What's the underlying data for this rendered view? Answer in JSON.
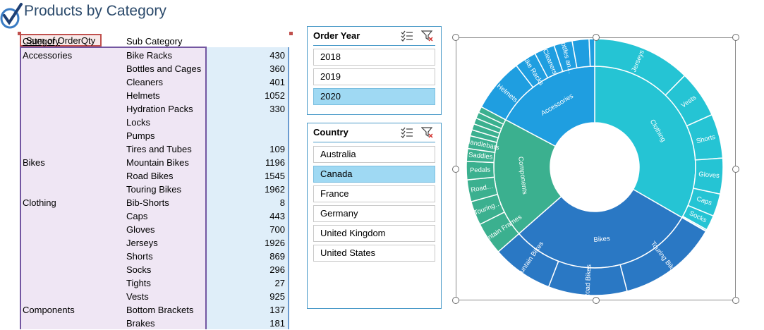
{
  "title": "Products by Category",
  "pivot": {
    "headers": {
      "category": "Category",
      "sub_category": "Sub Category",
      "sum": "Sum of OrderQty"
    },
    "rows": [
      {
        "category": "Accessories",
        "sub": "Bike Racks",
        "value": "430"
      },
      {
        "category": "",
        "sub": "Bottles and Cages",
        "value": "360"
      },
      {
        "category": "",
        "sub": "Cleaners",
        "value": "401"
      },
      {
        "category": "",
        "sub": "Helmets",
        "value": "1052"
      },
      {
        "category": "",
        "sub": "Hydration Packs",
        "value": "330"
      },
      {
        "category": "",
        "sub": "Locks",
        "value": ""
      },
      {
        "category": "",
        "sub": "Pumps",
        "value": ""
      },
      {
        "category": "",
        "sub": "Tires and Tubes",
        "value": "109"
      },
      {
        "category": "Bikes",
        "sub": "Mountain Bikes",
        "value": "1196"
      },
      {
        "category": "",
        "sub": "Road Bikes",
        "value": "1545"
      },
      {
        "category": "",
        "sub": "Touring Bikes",
        "value": "1962"
      },
      {
        "category": "Clothing",
        "sub": "Bib-Shorts",
        "value": "8"
      },
      {
        "category": "",
        "sub": "Caps",
        "value": "443"
      },
      {
        "category": "",
        "sub": "Gloves",
        "value": "700"
      },
      {
        "category": "",
        "sub": "Jerseys",
        "value": "1926"
      },
      {
        "category": "",
        "sub": "Shorts",
        "value": "869"
      },
      {
        "category": "",
        "sub": "Socks",
        "value": "296"
      },
      {
        "category": "",
        "sub": "Tights",
        "value": "27"
      },
      {
        "category": "",
        "sub": "Vests",
        "value": "925"
      },
      {
        "category": "Components",
        "sub": "Bottom Brackets",
        "value": "137"
      },
      {
        "category": "",
        "sub": "Brakes",
        "value": "181"
      }
    ]
  },
  "slicers": {
    "year": {
      "title": "Order Year",
      "items": [
        {
          "label": "2018",
          "selected": false
        },
        {
          "label": "2019",
          "selected": false
        },
        {
          "label": "2020",
          "selected": true
        }
      ]
    },
    "country": {
      "title": "Country",
      "items": [
        {
          "label": "Australia",
          "selected": false
        },
        {
          "label": "Canada",
          "selected": true
        },
        {
          "label": "France",
          "selected": false
        },
        {
          "label": "Germany",
          "selected": false
        },
        {
          "label": "United Kingdom",
          "selected": false
        },
        {
          "label": "United States",
          "selected": false
        }
      ]
    }
  },
  "icons": {
    "multiselect": "multi-select-icon",
    "clear_filter": "clear-filter-icon",
    "logo": "checkmark-logo-icon"
  },
  "colors": {
    "accessories": "#1f9ee0",
    "clothing": "#25c4d4",
    "bikes": "#2a78c4",
    "components": "#3bb08f",
    "slicer_selected": "#9fd9f3"
  },
  "chart_data": {
    "type": "sunburst",
    "inner": [
      {
        "name": "Clothing",
        "value": 5194,
        "color": "#25c4d4"
      },
      {
        "name": "Bikes",
        "value": 4703,
        "color": "#2a78c4"
      },
      {
        "name": "Components",
        "value": 3000,
        "color": "#3bb08f"
      },
      {
        "name": "Accessories",
        "value": 2682,
        "color": "#1f9ee0"
      }
    ],
    "outer": [
      {
        "parent": "Clothing",
        "name": "Jerseys",
        "value": 1926
      },
      {
        "parent": "Clothing",
        "name": "Vests",
        "value": 925
      },
      {
        "parent": "Clothing",
        "name": "Shorts",
        "value": 869
      },
      {
        "parent": "Clothing",
        "name": "Gloves",
        "value": 700
      },
      {
        "parent": "Clothing",
        "name": "Caps",
        "value": 443
      },
      {
        "parent": "Clothing",
        "name": "Socks",
        "value": 296
      },
      {
        "parent": "Clothing",
        "name": "",
        "value": 27
      },
      {
        "parent": "Clothing",
        "name": "",
        "value": 8
      },
      {
        "parent": "Bikes",
        "name": "Touring Bikes",
        "value": 1962
      },
      {
        "parent": "Bikes",
        "name": "Road Bikes",
        "value": 1545
      },
      {
        "parent": "Bikes",
        "name": "Mountain Bikes",
        "value": 1196
      },
      {
        "parent": "Components",
        "name": "Mountain Frames",
        "value": 640
      },
      {
        "parent": "Components",
        "name": "Touring…",
        "value": 470
      },
      {
        "parent": "Components",
        "name": "Road…",
        "value": 430
      },
      {
        "parent": "Components",
        "name": "Pedals",
        "value": 360
      },
      {
        "parent": "Components",
        "name": "Saddles",
        "value": 250
      },
      {
        "parent": "Components",
        "name": "Handlebars",
        "value": 250
      },
      {
        "parent": "Components",
        "name": "",
        "value": 120
      },
      {
        "parent": "Components",
        "name": "",
        "value": 120
      },
      {
        "parent": "Components",
        "name": "",
        "value": 120
      },
      {
        "parent": "Components",
        "name": "",
        "value": 120
      },
      {
        "parent": "Components",
        "name": "",
        "value": 120
      },
      {
        "parent": "Accessories",
        "name": "Helmets",
        "value": 1052
      },
      {
        "parent": "Accessories",
        "name": "Bike Racks",
        "value": 430
      },
      {
        "parent": "Accessories",
        "name": "Cleaners",
        "value": 401
      },
      {
        "parent": "Accessories",
        "name": "Bottles an…",
        "value": 360
      },
      {
        "parent": "Accessories",
        "name": "",
        "value": 330
      },
      {
        "parent": "Accessories",
        "name": "",
        "value": 109
      }
    ]
  }
}
